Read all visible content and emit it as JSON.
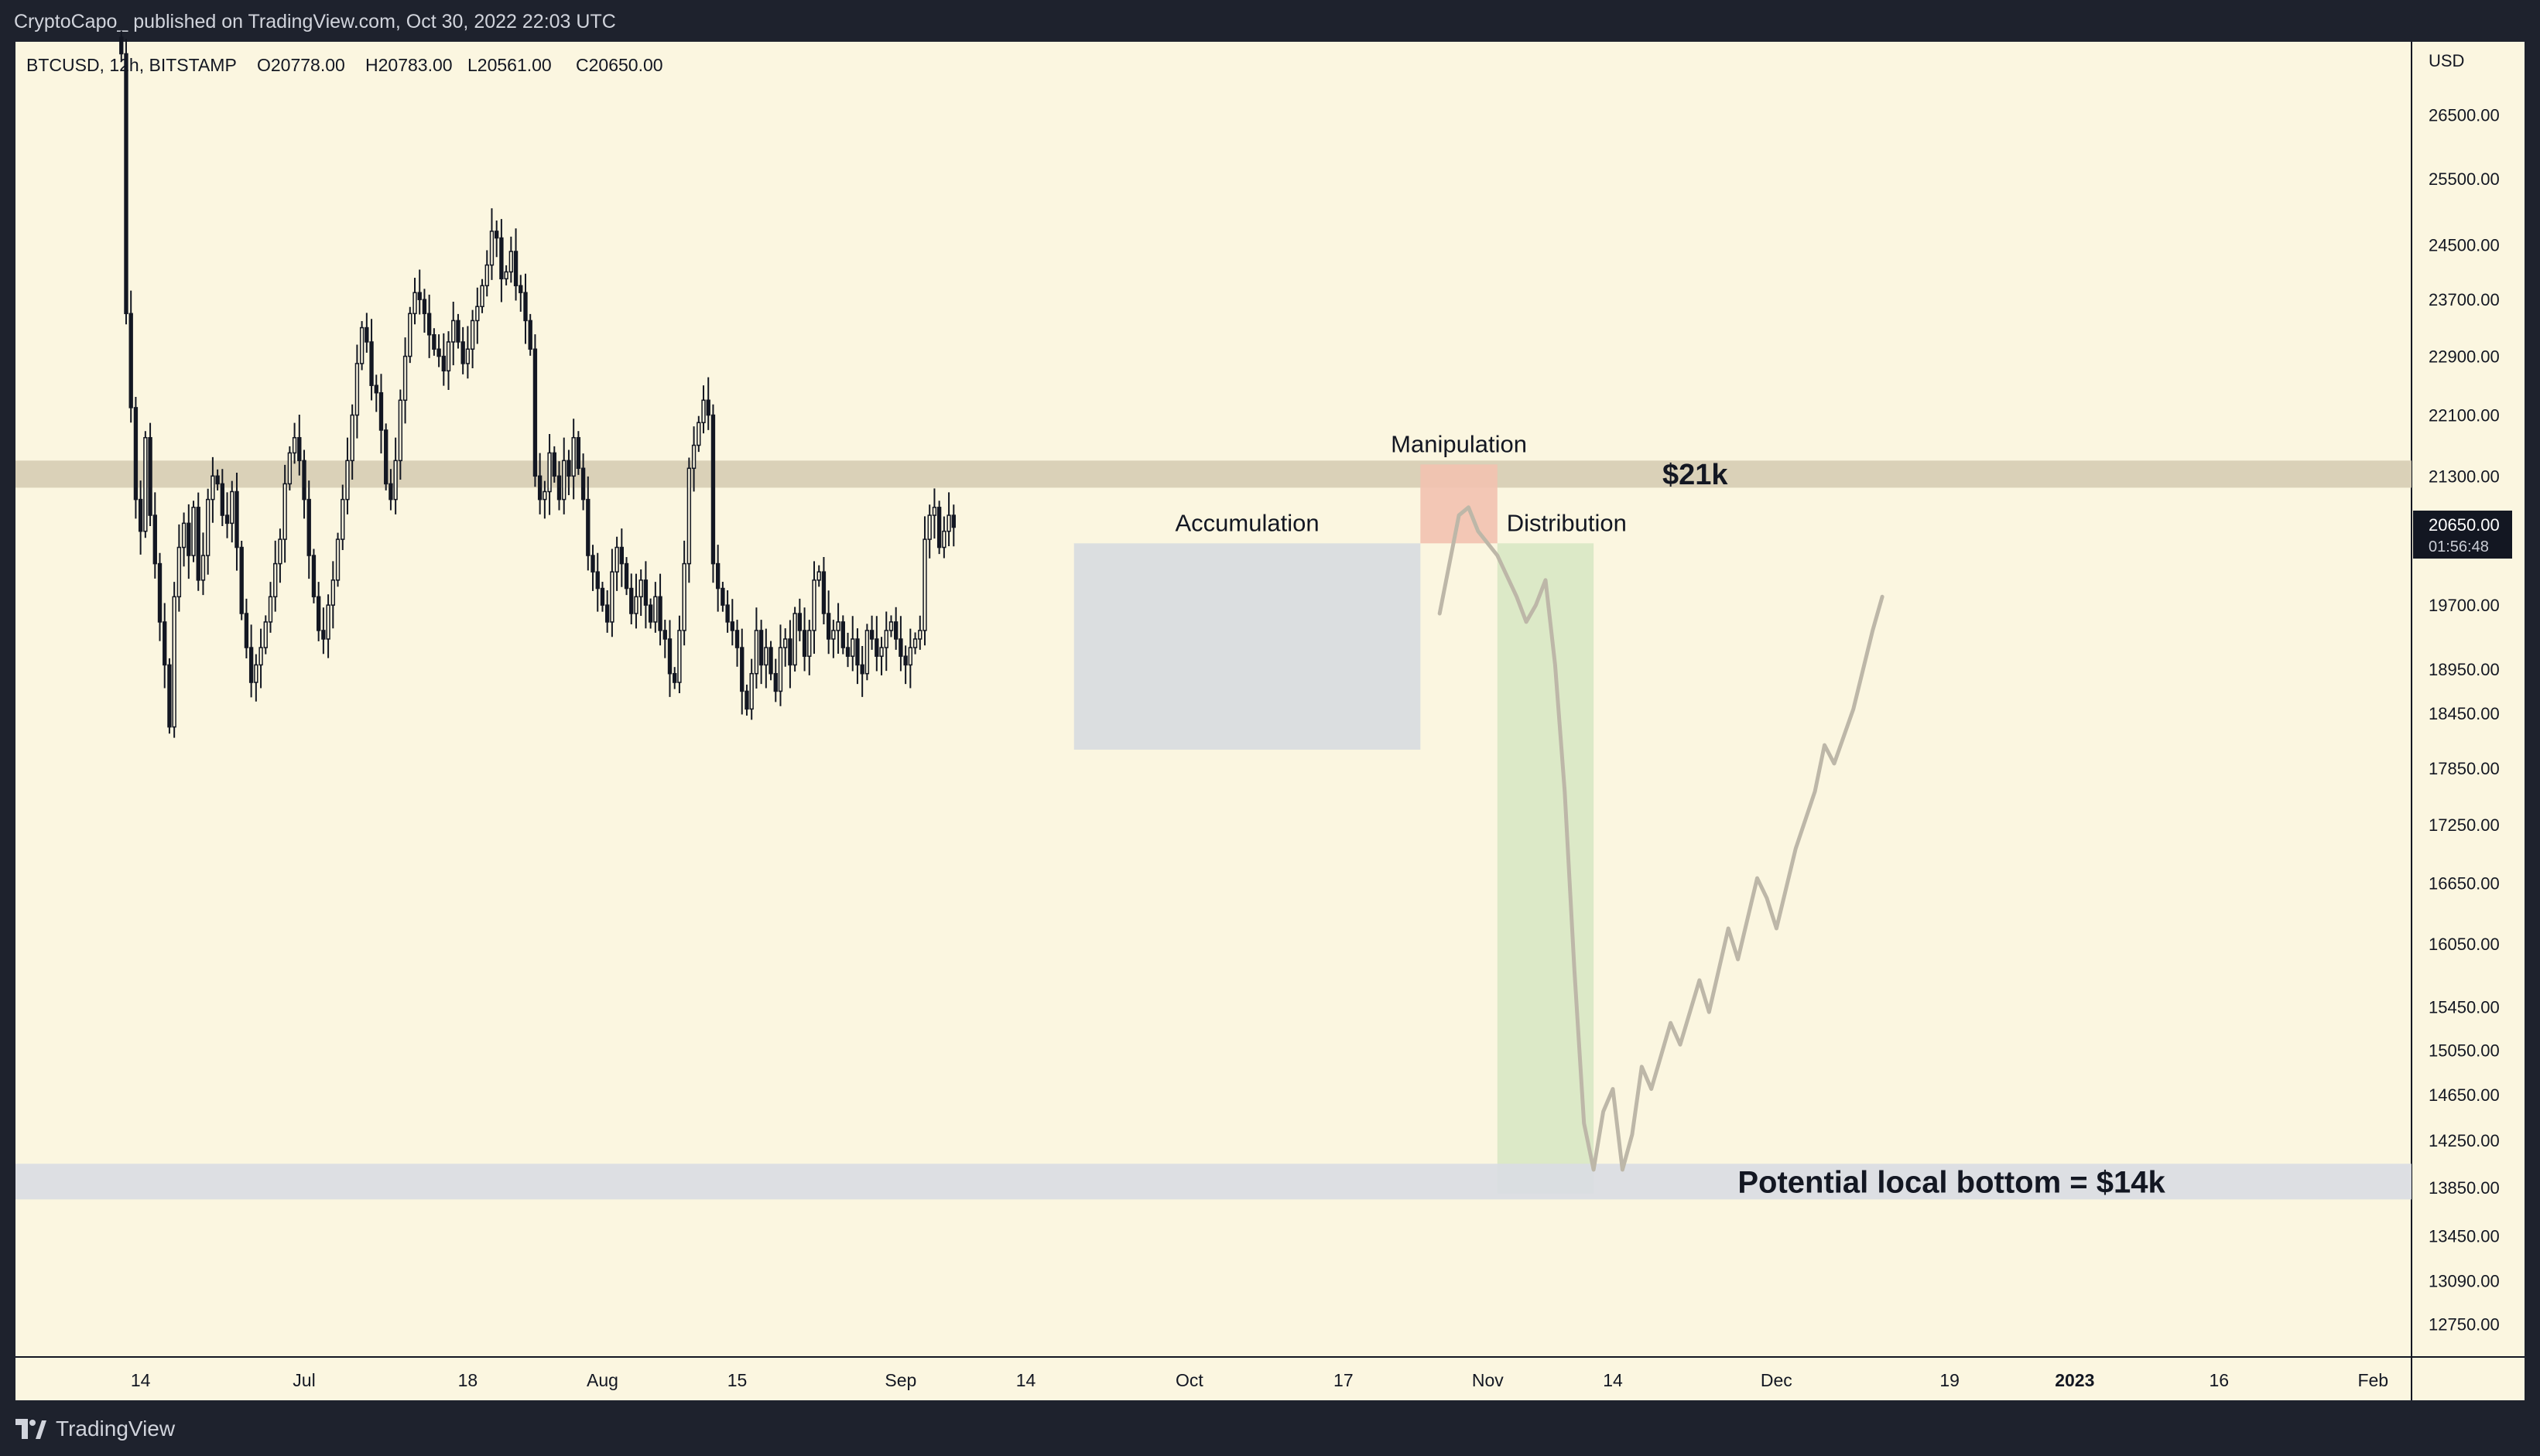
{
  "header": {
    "publisher_line": "CryptoCapo_ published on TradingView.com, Oct 30, 2022 22:03 UTC"
  },
  "footer": {
    "brand": "TradingView",
    "logo_icon": "tradingview-logo-icon"
  },
  "colors": {
    "chart_background": "#fbf6e0",
    "frame_background": "#1e222d",
    "candle": "#131722",
    "resistance_zone": "#d6cdb4",
    "accumulation_box": "#d7dbe0",
    "manipulation_box": "#f2c2b0",
    "distribution_box": "#d8e8c4",
    "bottom_zone": "#d9dde3",
    "projection_line": "#bdb7a8",
    "price_tag_bg": "#131722"
  },
  "chart_data": {
    "type": "candlestick",
    "symbol_line": {
      "symbol": "BTCUSD, 12h, BITSTAMP",
      "open": "O20778.00",
      "high": "H20783.00",
      "low": "L20561.00",
      "close": "C20650.00"
    },
    "currency": "USD",
    "y_scale": "log",
    "ylim": [
      12500,
      27700
    ],
    "y_ticks": [
      26500,
      25500,
      24500,
      23700,
      22900,
      22100,
      21300,
      19700,
      18950,
      18450,
      17850,
      17250,
      16650,
      16050,
      15450,
      15050,
      14650,
      14250,
      13850,
      13450,
      13090,
      12750
    ],
    "y_tick_labels": [
      "26500.00",
      "25500.00",
      "24500.00",
      "23700.00",
      "22900.00",
      "22100.00",
      "21300.00",
      "19700.00",
      "18950.00",
      "18450.00",
      "17850.00",
      "17250.00",
      "16650.00",
      "16050.00",
      "15450.00",
      "15050.00",
      "14650.00",
      "14250.00",
      "13850.00",
      "13450.00",
      "13090.00",
      "12750.00"
    ],
    "last_price": {
      "value": 20650,
      "label": "20650.00",
      "countdown": "01:56:48"
    },
    "x_axis_dates": [
      "2022-06-01",
      "2023-02-05"
    ],
    "x_ticks": [
      {
        "date": "2022-06-14",
        "label": "14",
        "bold": false
      },
      {
        "date": "2022-07-01",
        "label": "Jul",
        "bold": false
      },
      {
        "date": "2022-07-18",
        "label": "18",
        "bold": false
      },
      {
        "date": "2022-08-01",
        "label": "Aug",
        "bold": false
      },
      {
        "date": "2022-08-15",
        "label": "15",
        "bold": false
      },
      {
        "date": "2022-09-01",
        "label": "Sep",
        "bold": false
      },
      {
        "date": "2022-09-14",
        "label": "14",
        "bold": false
      },
      {
        "date": "2022-10-01",
        "label": "Oct",
        "bold": false
      },
      {
        "date": "2022-10-17",
        "label": "17",
        "bold": false
      },
      {
        "date": "2022-11-01",
        "label": "Nov",
        "bold": false
      },
      {
        "date": "2022-11-14",
        "label": "14",
        "bold": false
      },
      {
        "date": "2022-12-01",
        "label": "Dec",
        "bold": false
      },
      {
        "date": "2022-12-19",
        "label": "19",
        "bold": false
      },
      {
        "date": "2023-01-01",
        "label": "2023",
        "bold": true
      },
      {
        "date": "2023-01-16",
        "label": "16",
        "bold": false
      },
      {
        "date": "2023-02-01",
        "label": "Feb",
        "bold": false
      }
    ],
    "candle_closes_start_date": "2022-06-12",
    "candle_closes": [
      27500,
      23500,
      22200,
      21000,
      20600,
      21800,
      20800,
      20200,
      19500,
      19000,
      18300,
      19800,
      20400,
      20700,
      20300,
      20900,
      20000,
      20300,
      21000,
      21300,
      21200,
      20800,
      20700,
      21100,
      20400,
      19600,
      19200,
      18800,
      19000,
      19200,
      19500,
      19800,
      20200,
      20500,
      21200,
      21600,
      21800,
      21500,
      21000,
      20300,
      19800,
      19400,
      19300,
      19700,
      20000,
      20500,
      21000,
      21500,
      22100,
      22800,
      23300,
      23100,
      22500,
      22400,
      21900,
      21200,
      21000,
      21500,
      22300,
      22900,
      23500,
      23800,
      23700,
      23500,
      23200,
      23000,
      22900,
      22700,
      23100,
      23400,
      23100,
      22800,
      23000,
      23400,
      23600,
      23900,
      24200,
      24700,
      24600,
      24000,
      24100,
      24400,
      23900,
      23800,
      23400,
      23000,
      21300,
      21000,
      21100,
      21600,
      21300,
      21000,
      21500,
      21300,
      21800,
      21400,
      21000,
      20300,
      20100,
      19900,
      19700,
      19500,
      20100,
      20400,
      20200,
      19900,
      19600,
      19800,
      20000,
      19700,
      19500,
      19800,
      19400,
      19300,
      18900,
      18800,
      19400,
      20200,
      21400,
      21700,
      22000,
      22300,
      22100,
      20200,
      19900,
      19700,
      19500,
      19400,
      19200,
      18700,
      18500,
      18900,
      19400,
      19000,
      19200,
      18900,
      18700,
      19200,
      19300,
      19000,
      19600,
      19400,
      19100,
      19400,
      20000,
      20100,
      19600,
      19300,
      19400,
      19500,
      19200,
      19100,
      19300,
      19000,
      18900,
      19400,
      19300,
      19100,
      19200,
      19400,
      19500,
      19300,
      19100,
      19000,
      19200,
      19300,
      19400,
      20500,
      20800,
      20900,
      20400,
      20600,
      20800,
      20650
    ],
    "projection_path": [
      [
        "2022-10-27",
        19600
      ],
      [
        "2022-10-29",
        20800
      ],
      [
        "2022-10-30",
        20900
      ],
      [
        "2022-10-31",
        20600
      ],
      [
        "2022-11-02",
        20300
      ],
      [
        "2022-11-04",
        19800
      ],
      [
        "2022-11-05",
        19500
      ],
      [
        "2022-11-06",
        19700
      ],
      [
        "2022-11-07",
        20000
      ],
      [
        "2022-11-08",
        19000
      ],
      [
        "2022-11-09",
        17600
      ],
      [
        "2022-11-10",
        15800
      ],
      [
        "2022-11-11",
        14400
      ],
      [
        "2022-11-12",
        14000
      ],
      [
        "2022-11-13",
        14500
      ],
      [
        "2022-11-14",
        14700
      ],
      [
        "2022-11-15",
        14000
      ],
      [
        "2022-11-16",
        14300
      ],
      [
        "2022-11-17",
        14900
      ],
      [
        "2022-11-18",
        14700
      ],
      [
        "2022-11-20",
        15300
      ],
      [
        "2022-11-21",
        15100
      ],
      [
        "2022-11-23",
        15700
      ],
      [
        "2022-11-24",
        15400
      ],
      [
        "2022-11-26",
        16200
      ],
      [
        "2022-11-27",
        15900
      ],
      [
        "2022-11-29",
        16700
      ],
      [
        "2022-11-30",
        16500
      ],
      [
        "2022-12-01",
        16200
      ],
      [
        "2022-12-03",
        17000
      ],
      [
        "2022-12-05",
        17600
      ],
      [
        "2022-12-06",
        18100
      ],
      [
        "2022-12-07",
        17900
      ],
      [
        "2022-12-09",
        18500
      ],
      [
        "2022-12-11",
        19400
      ],
      [
        "2022-12-12",
        19800
      ]
    ],
    "zones": [
      {
        "name": "resistance",
        "label": "$21k",
        "y_range": [
          21150,
          21500
        ]
      },
      {
        "name": "accumulation",
        "label": "Accumulation",
        "x_range": [
          "2022-09-19",
          "2022-10-25"
        ],
        "y_range": [
          18050,
          20450
        ]
      },
      {
        "name": "manipulation",
        "label": "Manipulation",
        "x_range": [
          "2022-10-25",
          "2022-11-02"
        ],
        "y_range": [
          20450,
          21450
        ]
      },
      {
        "name": "distribution",
        "label": "Distribution",
        "x_range": [
          "2022-11-02",
          "2022-11-12"
        ],
        "y_range": [
          13800,
          20450
        ]
      },
      {
        "name": "bottom",
        "label": "Potential local bottom = $14k",
        "y_range": [
          13750,
          14050
        ]
      }
    ]
  }
}
